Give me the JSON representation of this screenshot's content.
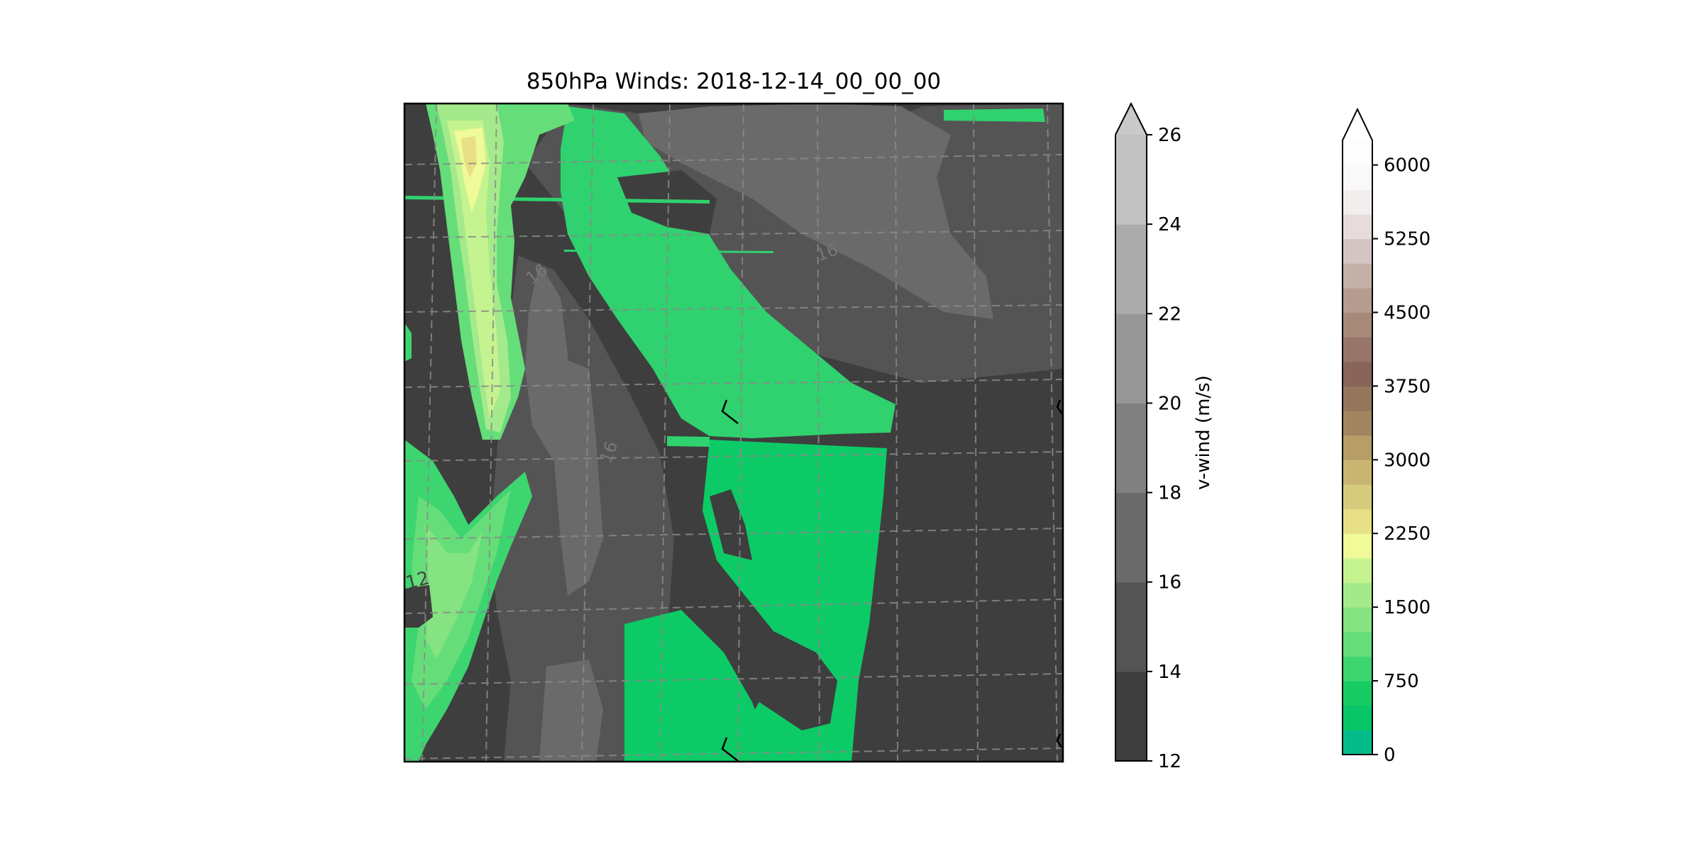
{
  "chart_data": {
    "type": "contourf",
    "title": "850hPa Winds: 2018-12-14_00_00_00",
    "map_panel": {
      "projection": "lambert-conformal",
      "gridlines": true,
      "gridline_style": "dashed",
      "terrain_fill": "terrain-colormap",
      "wind_overlay": "v-wind filled contours with labels",
      "wind_barbs": true,
      "contour_labels": [
        "16",
        "16",
        "12",
        "16"
      ]
    },
    "colorbars": [
      {
        "label": "v-wind (m/s)",
        "range": [
          12,
          26
        ],
        "levels": [
          12,
          14,
          16,
          18,
          20,
          22,
          24,
          26
        ],
        "tick_labels": [
          "12",
          "14",
          "16",
          "18",
          "20",
          "22",
          "24",
          "26"
        ],
        "extend": "max",
        "colors": [
          "#3e3e3e",
          "#545454",
          "#6a6a6a",
          "#808080",
          "#979797",
          "#acacac",
          "#c2c2c2"
        ],
        "extend_color": "#c9c9c9"
      },
      {
        "label": "",
        "range": [
          0,
          6250
        ],
        "levels": [
          0,
          250,
          500,
          750,
          1000,
          1250,
          1500,
          1750,
          2000,
          2250,
          2500,
          2750,
          3000,
          3250,
          3500,
          3750,
          4000,
          4250,
          4500,
          4750,
          5000,
          5250,
          5500,
          5750,
          6000,
          6250
        ],
        "tick_values": [
          0,
          750,
          1500,
          2250,
          3000,
          3750,
          4500,
          5250,
          6000
        ],
        "tick_labels": [
          "0",
          "750",
          "1500",
          "2250",
          "3000",
          "3750",
          "4500",
          "5250",
          "6000"
        ],
        "extend": "max",
        "colors": [
          "#06bb8a",
          "#08c568",
          "#16cc62",
          "#3dd570",
          "#65de79",
          "#85e381",
          "#a4ea8c",
          "#c5f390",
          "#f0fa98",
          "#e8e086",
          "#d6cb7c",
          "#c8b571",
          "#b69e66",
          "#a28561",
          "#94765d",
          "#886459",
          "#977568",
          "#a68979",
          "#b59c90",
          "#c3b1a9",
          "#d3c6c2",
          "#e5dcdb",
          "#f2eeee",
          "#faf8f8",
          "#fdfdfd"
        ],
        "extend_color": "#ffffff"
      }
    ]
  }
}
